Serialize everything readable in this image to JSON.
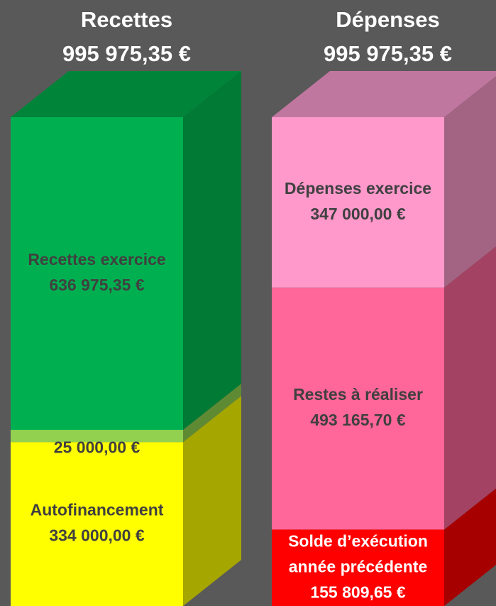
{
  "chart_data": [
    {
      "type": "bar",
      "title": "Recettes",
      "total": 995975.35,
      "total_label": "995 975,35 €",
      "ylim": [
        0,
        995975.35
      ],
      "labels": [
        [
          "Autofinancement"
        ],
        [
          "Restes à réaliser"
        ],
        [
          "Recettes exercice"
        ]
      ],
      "values": [
        334000.0,
        25000.0,
        636975.35
      ],
      "value_labels": [
        "334 000,00 €",
        "25 000,00 €",
        "636 975,35 €"
      ],
      "colors": [
        "#ffff00",
        "#92d050",
        "#00b050"
      ],
      "side_colors": [
        "#a6a600",
        "#5f8a34",
        "#007a35"
      ],
      "top_color": "#00843a",
      "label_colors": [
        "#404040",
        "#404040",
        "#404040"
      ]
    },
    {
      "type": "bar",
      "title": "Dépenses",
      "total": 995975.35,
      "total_label": "995 975,35 €",
      "ylim": [
        0,
        995975.35
      ],
      "labels": [
        [
          "Solde d’exécution",
          "année précédente"
        ],
        [
          "Restes à réaliser"
        ],
        [
          "Dépenses exercice"
        ]
      ],
      "values": [
        155809.65,
        493165.7,
        347000.0
      ],
      "value_labels": [
        "155 809,65 €",
        "493 165,70 €",
        "347 000,00 €"
      ],
      "colors": [
        "#ff0000",
        "#ff6699",
        "#ff99cc"
      ],
      "side_colors": [
        "#a60000",
        "#a34262",
        "#a36483"
      ],
      "top_color": "#c0779f",
      "label_colors": [
        "#ffffff",
        "#404040",
        "#404040"
      ]
    }
  ]
}
